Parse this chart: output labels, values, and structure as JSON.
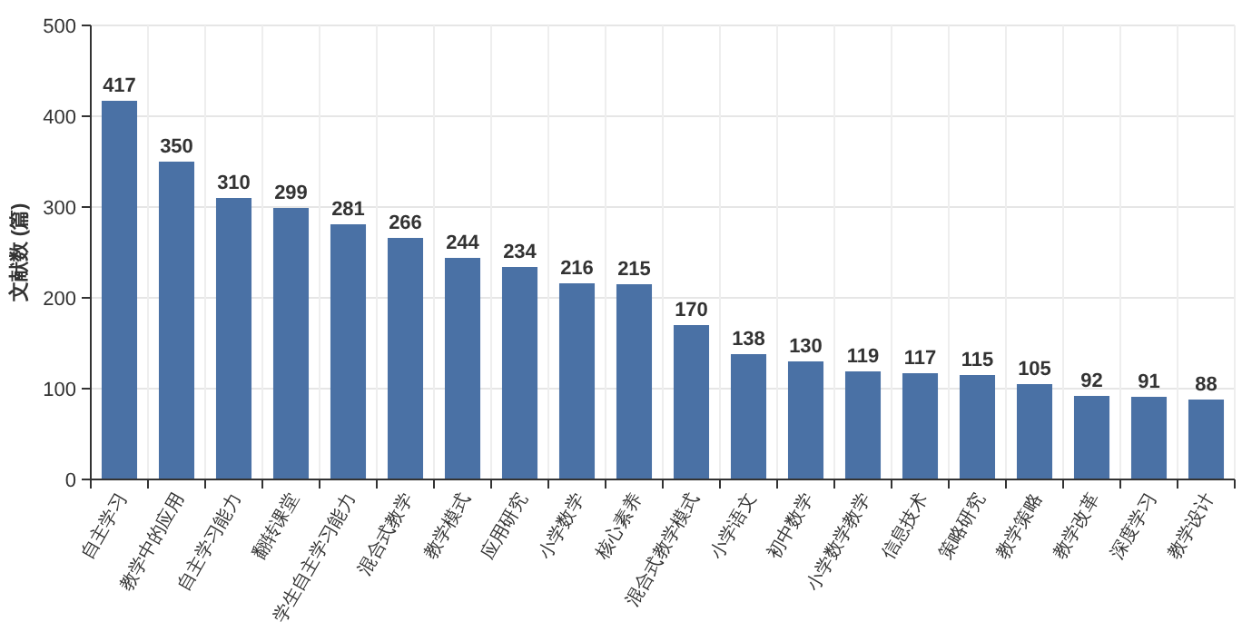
{
  "chart_data": {
    "type": "bar",
    "ylabel": "文献数 (篇)",
    "categories": [
      "自主学习",
      "教学中的应用",
      "自主学习能力",
      "翻转课堂",
      "学生自主学习能力",
      "混合式教学",
      "教学模式",
      "应用研究",
      "小学数学",
      "核心素养",
      "混合式教学模式",
      "小学语文",
      "初中数学",
      "小学数学教学",
      "信息技术",
      "策略研究",
      "教学策略",
      "教学改革",
      "深度学习",
      "教学设计"
    ],
    "values": [
      417,
      350,
      310,
      299,
      281,
      266,
      244,
      234,
      216,
      215,
      170,
      138,
      130,
      119,
      117,
      115,
      105,
      92,
      91,
      88
    ],
    "color": "#4a71a5",
    "ylim": [
      0,
      500
    ],
    "yticks": [
      0,
      100,
      200,
      300,
      400,
      500
    ],
    "grid": true,
    "data_labels": true
  }
}
